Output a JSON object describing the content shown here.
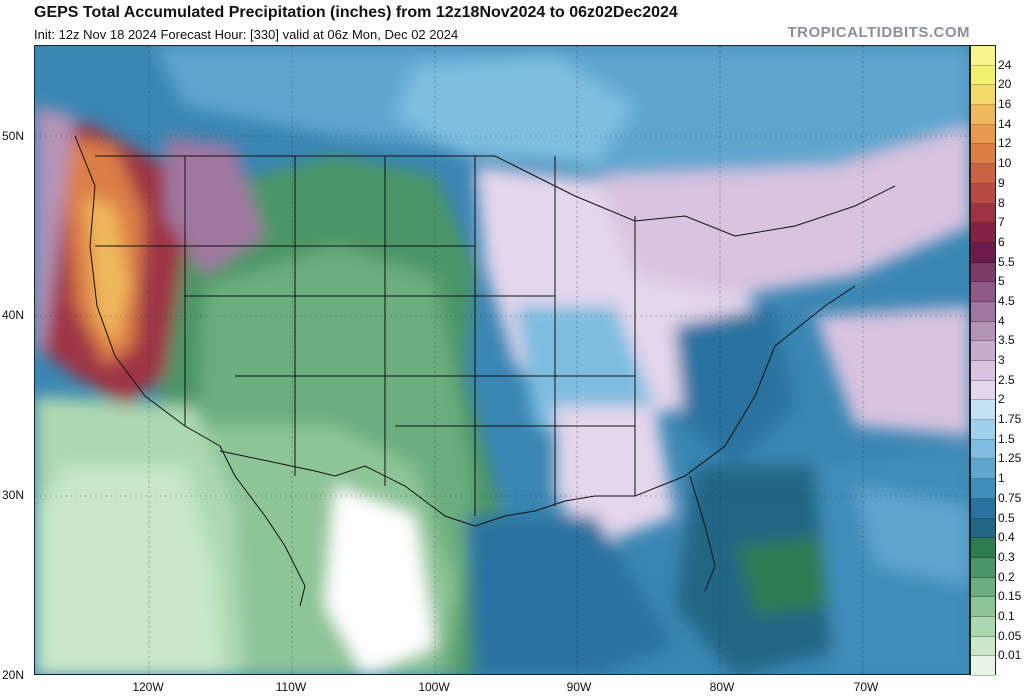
{
  "header": {
    "title": "GEPS Total Accumulated Precipitation (inches) from 12z18Nov2024 to 06z02Dec2024",
    "subtitle": "Init: 12z Nov 18 2024   Forecast Hour: [330]   valid at 06z Mon, Dec 02 2024",
    "brand": "TROPICALTIDBITS.COM"
  },
  "axes": {
    "lat_labels": [
      "50N",
      "40N",
      "30N",
      "20N"
    ],
    "lon_labels": [
      "120W",
      "110W",
      "100W",
      "90W",
      "80W",
      "70W"
    ]
  },
  "legend": {
    "unit": "inches",
    "levels": [
      {
        "label": "24",
        "color": "#f2f06f"
      },
      {
        "label": "20",
        "color": "#f3d86a"
      },
      {
        "label": "16",
        "color": "#f0b85c"
      },
      {
        "label": "14",
        "color": "#e89a4e"
      },
      {
        "label": "12",
        "color": "#dc7e47"
      },
      {
        "label": "10",
        "color": "#c96344"
      },
      {
        "label": "9",
        "color": "#b54b43"
      },
      {
        "label": "8",
        "color": "#9d3444"
      },
      {
        "label": "7",
        "color": "#842245"
      },
      {
        "label": "6",
        "color": "#6b1c4a"
      },
      {
        "label": "5.5",
        "color": "#7b3c6c"
      },
      {
        "label": "5",
        "color": "#8e5a87"
      },
      {
        "label": "4.5",
        "color": "#a077a0"
      },
      {
        "label": "4",
        "color": "#b493b8"
      },
      {
        "label": "3.5",
        "color": "#c7acce"
      },
      {
        "label": "3",
        "color": "#d8c3e0"
      },
      {
        "label": "2.5",
        "color": "#e4d6ec"
      },
      {
        "label": "2",
        "color": "#c3e2f3"
      },
      {
        "label": "1.75",
        "color": "#9fd1ec"
      },
      {
        "label": "1.5",
        "color": "#7ebde0"
      },
      {
        "label": "1.25",
        "color": "#5fa6cf"
      },
      {
        "label": "1",
        "color": "#3f8db9"
      },
      {
        "label": "0.75",
        "color": "#2a73a0"
      },
      {
        "label": "0.5",
        "color": "#236685"
      },
      {
        "label": "0.4",
        "color": "#2e7c52"
      },
      {
        "label": "0.3",
        "color": "#4b9566"
      },
      {
        "label": "0.2",
        "color": "#6cae7e"
      },
      {
        "label": "0.15",
        "color": "#8dc597"
      },
      {
        "label": "0.1",
        "color": "#acd8b0"
      },
      {
        "label": "0.05",
        "color": "#c8e8c8"
      },
      {
        "label": "0.01",
        "color": "#e6f5e4"
      }
    ]
  }
}
